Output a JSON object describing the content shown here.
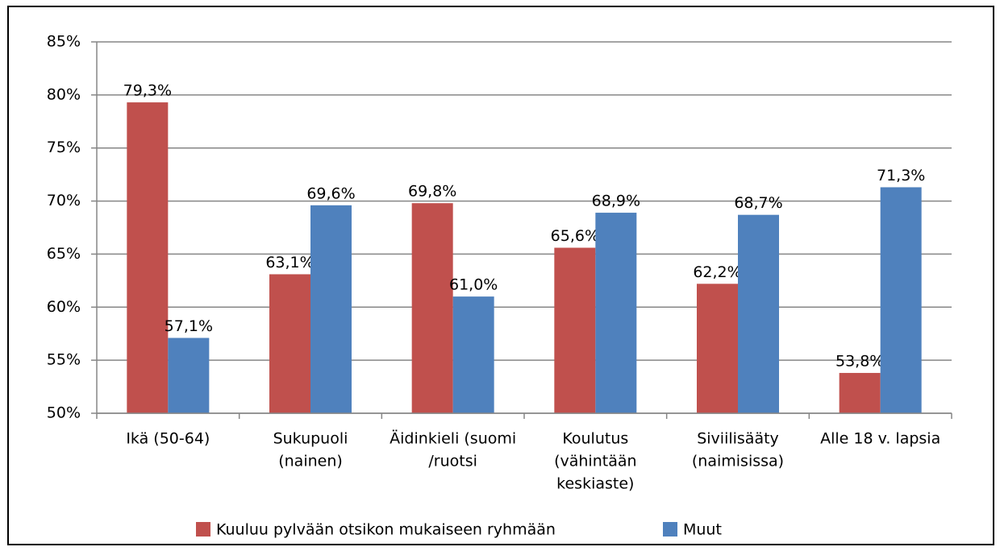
{
  "chart_data": {
    "type": "bar",
    "categories": [
      [
        "Ikä (50-64)"
      ],
      [
        "Sukupuoli",
        "(nainen)"
      ],
      [
        "Äidinkieli (suomi",
        "/ruotsi"
      ],
      [
        "Koulutus",
        "(vähintään",
        "keskiaste)"
      ],
      [
        "Siviilisääty",
        "(naimisissa)"
      ],
      [
        "Alle 18 v. lapsia"
      ]
    ],
    "series": [
      {
        "name": "Kuuluu pylvään otsikon mukaiseen ryhmään",
        "color": "#c0504d",
        "values": [
          79.3,
          63.1,
          69.8,
          65.6,
          62.2,
          53.8
        ],
        "value_labels": [
          "79,3%",
          "63,1%",
          "69,8%",
          "65,6%",
          "62,2%",
          "53,8%"
        ]
      },
      {
        "name": "Muut",
        "color": "#4f81bd",
        "values": [
          57.1,
          69.6,
          61.0,
          68.9,
          68.7,
          71.3
        ],
        "value_labels": [
          "57,1%",
          "69,6%",
          "61,0%",
          "68,9%",
          "68,7%",
          "71,3%"
        ]
      }
    ],
    "ylim": [
      50,
      85
    ],
    "yticks": [
      {
        "value": 50,
        "label": "50%"
      },
      {
        "value": 55,
        "label": "55%"
      },
      {
        "value": 60,
        "label": "60%"
      },
      {
        "value": 65,
        "label": "65%"
      },
      {
        "value": 70,
        "label": "70%"
      },
      {
        "value": 75,
        "label": "75%"
      },
      {
        "value": 80,
        "label": "80%"
      },
      {
        "value": 85,
        "label": "85%"
      }
    ],
    "grid": true,
    "legend": "bottom"
  }
}
